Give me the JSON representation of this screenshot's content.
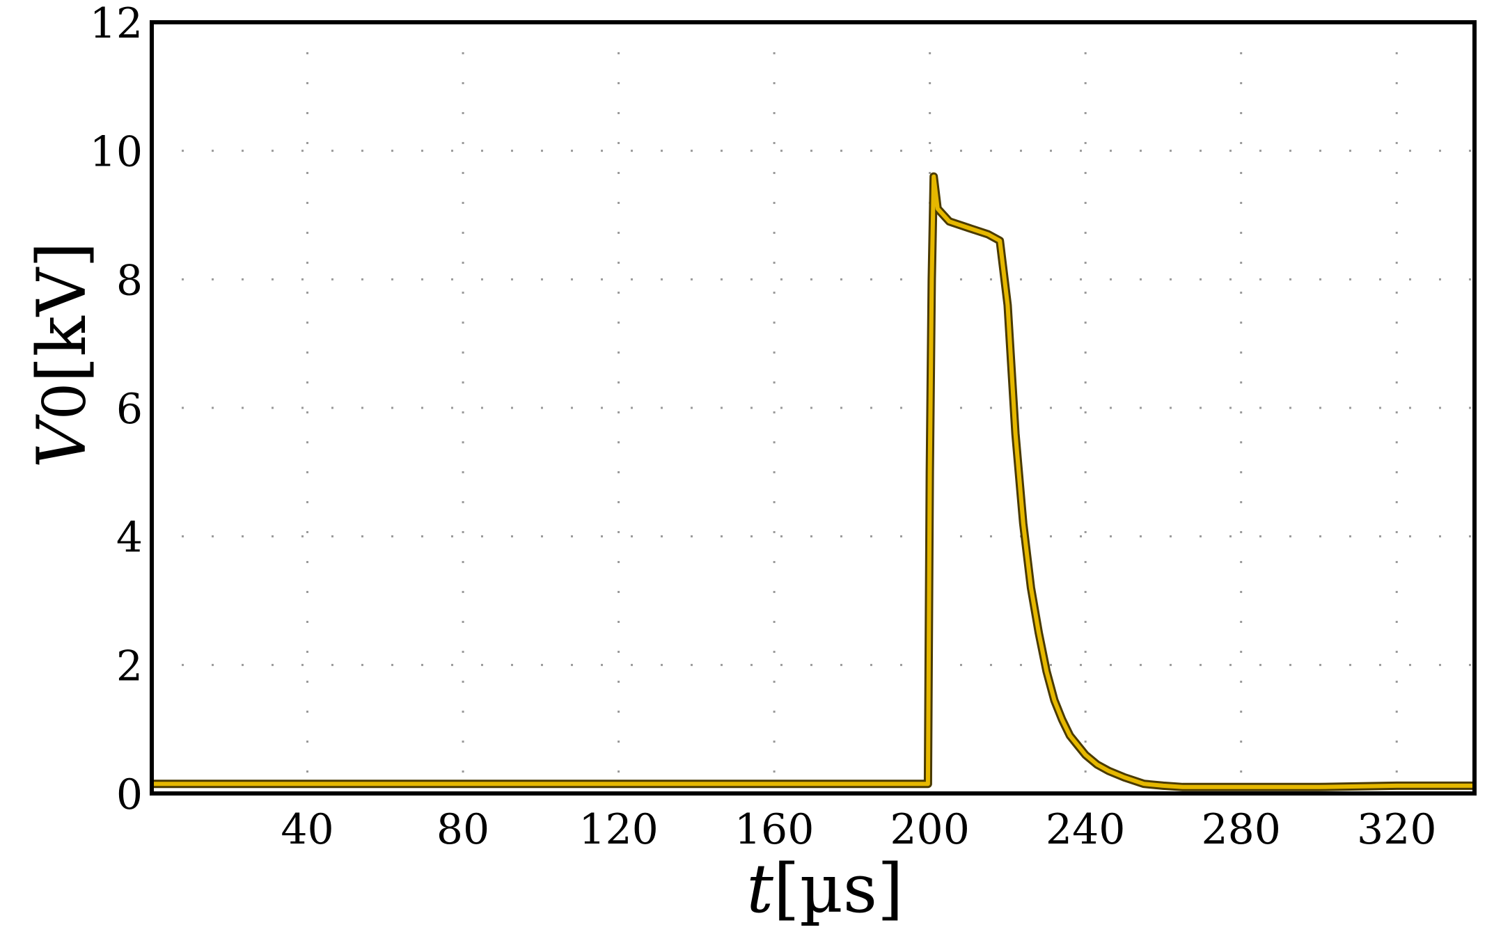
{
  "chart_data": {
    "type": "line",
    "title": "",
    "xlabel": {
      "var": "t",
      "unit": "[µs]"
    },
    "ylabel": {
      "var": "V",
      "sub": "0",
      "unit": "[kV]"
    },
    "xlim": [
      0,
      340
    ],
    "ylim": [
      0,
      12
    ],
    "x_ticks": [
      40,
      80,
      120,
      160,
      200,
      240,
      280,
      320
    ],
    "y_ticks": [
      0,
      2,
      4,
      6,
      8,
      10,
      12
    ],
    "grid": "dotted",
    "series_color": "#e6b800",
    "series": [
      {
        "x": [
          0,
          20,
          40,
          60,
          80,
          100,
          120,
          140,
          160,
          180,
          198,
          199.5,
          200,
          200.5,
          201,
          202,
          205,
          210,
          215,
          218,
          220,
          222,
          224,
          226,
          228,
          230,
          232,
          234,
          236,
          238,
          240,
          243,
          246,
          250,
          255,
          260,
          265,
          280,
          300,
          320,
          340
        ],
        "y": [
          0.15,
          0.15,
          0.15,
          0.15,
          0.15,
          0.15,
          0.15,
          0.15,
          0.15,
          0.15,
          0.15,
          0.15,
          5.0,
          8.0,
          9.6,
          9.1,
          8.9,
          8.8,
          8.7,
          8.6,
          7.6,
          5.6,
          4.2,
          3.2,
          2.5,
          1.9,
          1.45,
          1.15,
          0.9,
          0.75,
          0.6,
          0.45,
          0.35,
          0.25,
          0.15,
          0.12,
          0.1,
          0.1,
          0.1,
          0.12,
          0.12
        ]
      }
    ]
  }
}
